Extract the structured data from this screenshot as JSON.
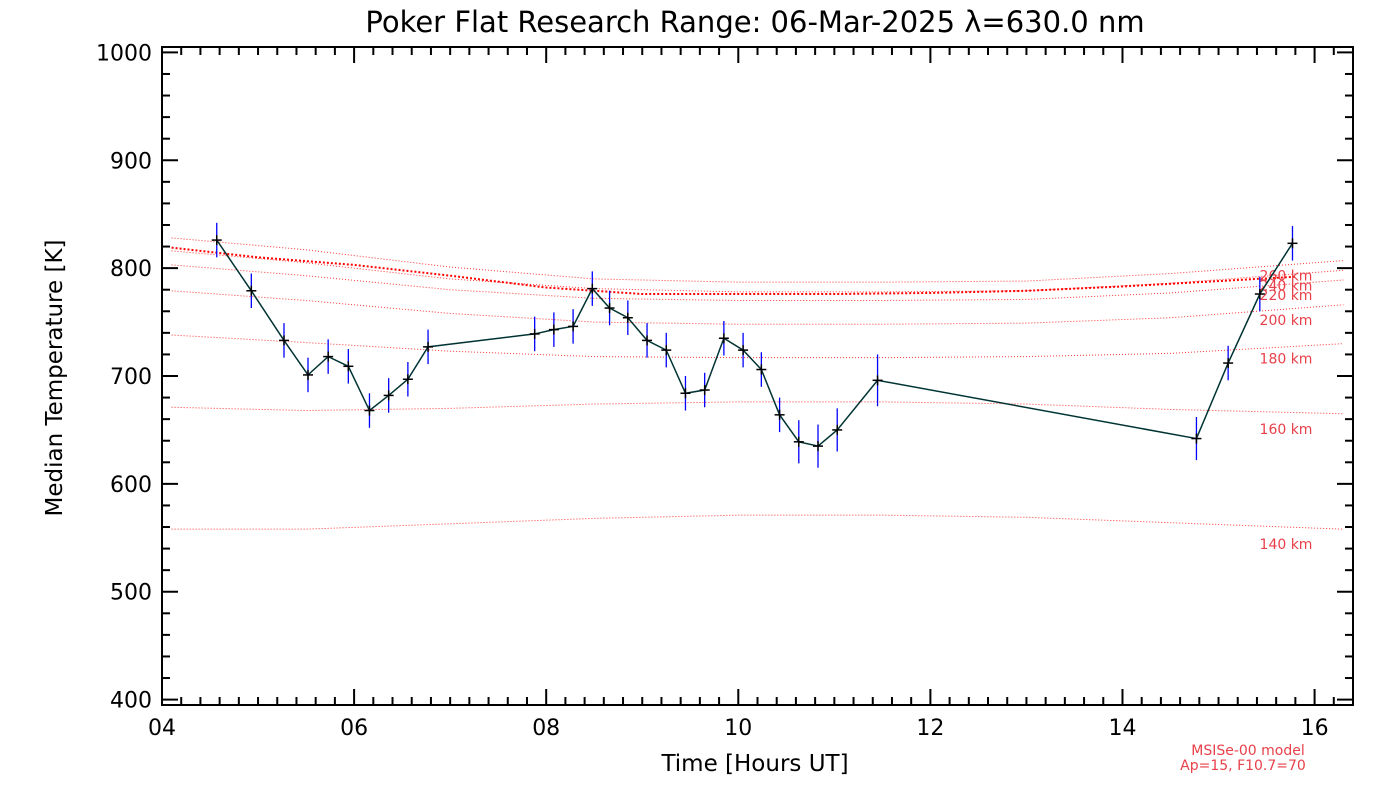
{
  "chart_data": {
    "type": "line",
    "title": "Poker Flat Research Range: 06-Mar-2025 λ=630.0 nm",
    "xlabel": "Time [Hours UT]",
    "ylabel": "Median Temperature [K]",
    "xlim": [
      4.0,
      16.4
    ],
    "ylim": [
      395,
      1005
    ],
    "x_ticks": [
      4,
      6,
      8,
      10,
      12,
      14,
      16
    ],
    "x_tick_labels": [
      "04",
      "06",
      "08",
      "10",
      "12",
      "14",
      "16"
    ],
    "y_ticks": [
      400,
      500,
      600,
      700,
      800,
      900,
      1000
    ],
    "y_tick_labels": [
      "400",
      "500",
      "600",
      "700",
      "800",
      "900",
      "1000"
    ],
    "grid": false,
    "colors": {
      "measured_line": "#003333",
      "marker": "#000000",
      "error_bar": "#0000ff",
      "model": "#ff0000",
      "model_text": "#e8404a"
    },
    "series": [
      {
        "x": [
          4.57,
          4.93,
          5.27,
          5.52,
          5.73,
          5.94,
          6.16,
          6.36,
          6.56,
          6.77,
          7.88,
          8.08,
          8.28,
          8.48,
          8.66,
          8.85,
          9.05,
          9.25,
          9.45,
          9.65,
          9.85,
          10.05,
          10.24,
          10.43,
          10.63,
          10.83,
          11.03,
          11.45,
          14.77,
          15.1,
          15.43,
          15.77
        ],
        "y": [
          826,
          779,
          733,
          701,
          718,
          709,
          668,
          682,
          697,
          727,
          739,
          743,
          746,
          781,
          763,
          754,
          733,
          724,
          684,
          687,
          735,
          724,
          706,
          664,
          639,
          635,
          650,
          696,
          642,
          712,
          776,
          823
        ],
        "error": [
          16,
          16,
          16,
          16,
          16,
          16,
          16,
          16,
          16,
          16,
          16,
          16,
          16,
          16,
          16,
          16,
          16,
          16,
          16,
          16,
          16,
          16,
          16,
          16,
          20,
          20,
          20,
          24,
          20,
          16,
          16,
          16
        ]
      }
    ],
    "model_curves": [
      {
        "label": "140 km",
        "x": [
          4.1,
          5.5,
          7.0,
          8.5,
          10.0,
          11.5,
          13.0,
          14.5,
          16.3
        ],
        "y": [
          558,
          558,
          563,
          568,
          571,
          571,
          569,
          564,
          558
        ]
      },
      {
        "label": "160 km",
        "x": [
          4.1,
          5.5,
          7.0,
          8.5,
          10.0,
          11.5,
          13.0,
          14.5,
          16.3
        ],
        "y": [
          671,
          668,
          670,
          674,
          676,
          676,
          674,
          669,
          665
        ]
      },
      {
        "label": "180 km",
        "x": [
          4.1,
          5.5,
          7.0,
          8.5,
          10.0,
          11.5,
          13.0,
          14.5,
          16.3
        ],
        "y": [
          738,
          731,
          723,
          718,
          717,
          717,
          718,
          721,
          730
        ]
      },
      {
        "label": "200 km",
        "x": [
          4.1,
          5.5,
          7.0,
          8.5,
          10.0,
          11.5,
          13.0,
          14.5,
          16.3
        ],
        "y": [
          779,
          770,
          758,
          750,
          748,
          748,
          749,
          754,
          766
        ]
      },
      {
        "label": "220 km",
        "x": [
          4.1,
          5.5,
          7.0,
          8.5,
          10.0,
          11.5,
          13.0,
          14.5,
          16.3
        ],
        "y": [
          803,
          793,
          780,
          772,
          770,
          770,
          771,
          777,
          789
        ]
      },
      {
        "label": "240 km",
        "x": [
          4.1,
          5.5,
          7.0,
          8.5,
          10.0,
          11.5,
          13.0,
          14.5,
          16.3
        ],
        "y": [
          816,
          805,
          790,
          781,
          778,
          778,
          779,
          786,
          798
        ]
      },
      {
        "label": "260 km",
        "x": [
          4.1,
          5.5,
          7.0,
          8.5,
          10.0,
          11.5,
          13.0,
          14.5,
          16.3
        ],
        "y": [
          828,
          817,
          801,
          790,
          787,
          787,
          788,
          795,
          807
        ]
      }
    ],
    "exospheric_curve": {
      "x": [
        4.1,
        5.0,
        6.0,
        7.0,
        8.0,
        9.0,
        10.0,
        11.0,
        12.0,
        13.0,
        14.0,
        15.0,
        15.8
      ],
      "y": [
        819,
        810,
        803,
        793,
        782,
        776,
        776,
        776,
        777,
        779,
        783,
        788,
        792
      ]
    },
    "annotations": {
      "model_name": "MSISe-00 model",
      "model_params": "Ap=15, F10.7=70"
    }
  }
}
